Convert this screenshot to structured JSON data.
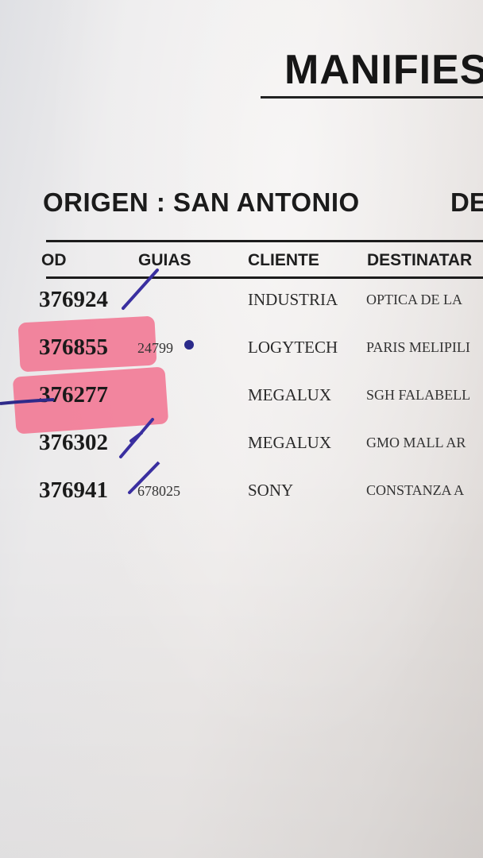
{
  "title": "MANIFIES",
  "origen": "ORIGEN : SAN ANTONIO",
  "destino": "DE",
  "headers": {
    "cod": "OD",
    "guias": "GUIAS",
    "cliente": "CLIENTE",
    "destinatario": "DESTINATAR"
  },
  "rows": [
    {
      "cod": "376924",
      "guias": "",
      "cliente": "INDUSTRIA",
      "destinatario": "OPTICA DE LA"
    },
    {
      "cod": "376855",
      "guias": "24799",
      "cliente": "LOGYTECH",
      "destinatario": "PARIS MELIPILI"
    },
    {
      "cod": "376277",
      "guias": "",
      "cliente": "MEGALUX",
      "destinatario": "SGH FALABELL"
    },
    {
      "cod": "376302",
      "guias": "",
      "cliente": "MEGALUX",
      "destinatario": "GMO MALL AR"
    },
    {
      "cod": "376941",
      "guias": "678025",
      "cliente": "SONY",
      "destinatario": "CONSTANZA A"
    }
  ],
  "colors": {
    "highlighter": "#f2728f",
    "pen": "#3a2fa0"
  }
}
